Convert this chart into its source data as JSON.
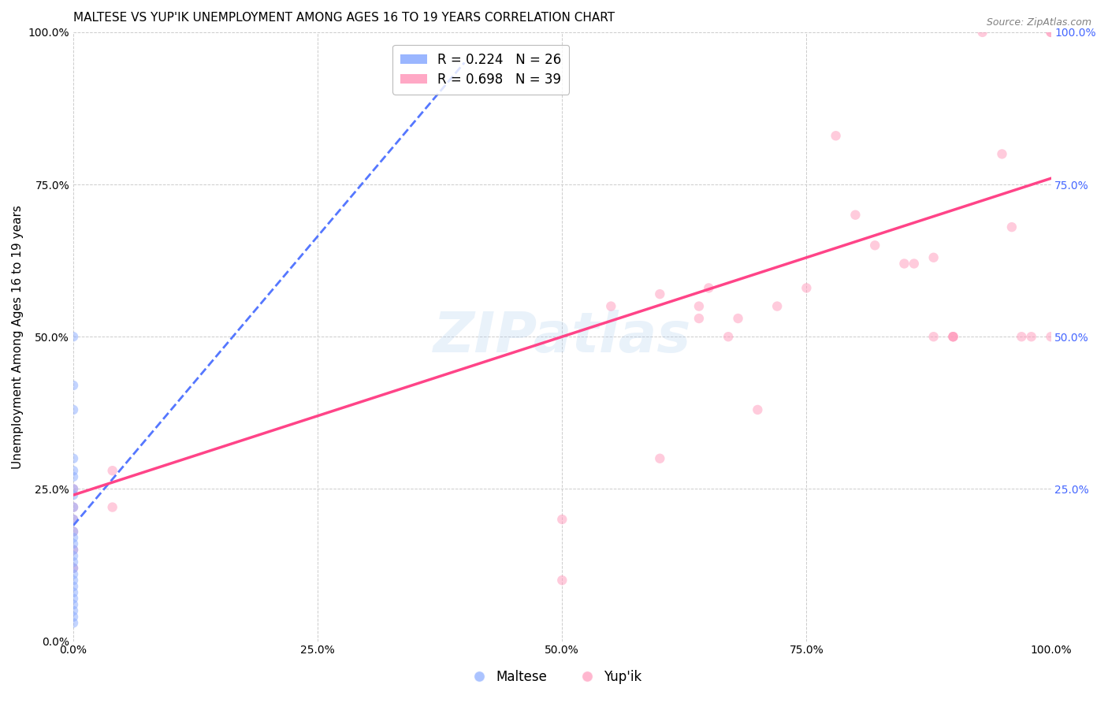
{
  "title": "MALTESE VS YUP'IK UNEMPLOYMENT AMONG AGES 16 TO 19 YEARS CORRELATION CHART",
  "source": "Source: ZipAtlas.com",
  "ylabel": "Unemployment Among Ages 16 to 19 years",
  "xlim": [
    0,
    1.0
  ],
  "ylim": [
    0,
    1.0
  ],
  "xticks": [
    0.0,
    0.25,
    0.5,
    0.75,
    1.0
  ],
  "yticks": [
    0.0,
    0.25,
    0.5,
    0.75,
    1.0
  ],
  "xticklabels": [
    "0.0%",
    "25.0%",
    "50.0%",
    "75.0%",
    "100.0%"
  ],
  "yticklabels": [
    "0.0%",
    "25.0%",
    "50.0%",
    "75.0%",
    "100.0%"
  ],
  "right_yticklabels": [
    "25.0%",
    "50.0%",
    "75.0%",
    "100.0%"
  ],
  "right_yticks": [
    0.25,
    0.5,
    0.75,
    1.0
  ],
  "legend_entries": [
    {
      "label": "R = 0.224   N = 26",
      "color": "#88aaff"
    },
    {
      "label": "R = 0.698   N = 39",
      "color": "#ff99bb"
    }
  ],
  "maltese_x": [
    0.0,
    0.0,
    0.0,
    0.0,
    0.0,
    0.0,
    0.0,
    0.0,
    0.0,
    0.0,
    0.0,
    0.0,
    0.0,
    0.0,
    0.0,
    0.0,
    0.0,
    0.0,
    0.0,
    0.0,
    0.0,
    0.0,
    0.0,
    0.0,
    0.0,
    0.0
  ],
  "maltese_y": [
    0.5,
    0.42,
    0.38,
    0.3,
    0.28,
    0.27,
    0.25,
    0.24,
    0.22,
    0.2,
    0.18,
    0.17,
    0.16,
    0.15,
    0.14,
    0.13,
    0.12,
    0.11,
    0.1,
    0.09,
    0.08,
    0.07,
    0.06,
    0.05,
    0.04,
    0.03
  ],
  "yupik_x": [
    0.0,
    0.0,
    0.0,
    0.0,
    0.0,
    0.0,
    0.04,
    0.04,
    0.5,
    0.5,
    0.55,
    0.6,
    0.6,
    0.64,
    0.64,
    0.65,
    0.67,
    0.68,
    0.7,
    0.72,
    0.75,
    0.78,
    0.8,
    0.82,
    0.85,
    0.86,
    0.88,
    0.88,
    0.9,
    0.9,
    0.9,
    0.93,
    0.95,
    0.96,
    0.97,
    0.98,
    1.0,
    1.0,
    1.0
  ],
  "yupik_y": [
    0.25,
    0.22,
    0.2,
    0.18,
    0.15,
    0.12,
    0.28,
    0.22,
    0.2,
    0.1,
    0.55,
    0.57,
    0.3,
    0.55,
    0.53,
    0.58,
    0.5,
    0.53,
    0.38,
    0.55,
    0.58,
    0.83,
    0.7,
    0.65,
    0.62,
    0.62,
    0.63,
    0.5,
    0.5,
    0.5,
    0.5,
    1.0,
    0.8,
    0.68,
    0.5,
    0.5,
    1.0,
    0.5,
    1.0
  ],
  "maltese_color": "#88aaff",
  "yupik_color": "#ff99bb",
  "maltese_line_color": "#5577ff",
  "yupik_line_color": "#ff4488",
  "maltese_line_x": [
    0.0,
    0.4
  ],
  "maltese_line_y": [
    0.19,
    0.95
  ],
  "yupik_line_x": [
    0.0,
    1.0
  ],
  "yupik_line_y": [
    0.24,
    0.76
  ],
  "watermark": "ZIPatlas",
  "background_color": "#ffffff",
  "grid_color": "#cccccc",
  "marker_size": 80,
  "marker_alpha": 0.5,
  "title_fontsize": 11,
  "axis_label_fontsize": 11,
  "tick_fontsize": 10,
  "right_tick_color": "#4466ff"
}
